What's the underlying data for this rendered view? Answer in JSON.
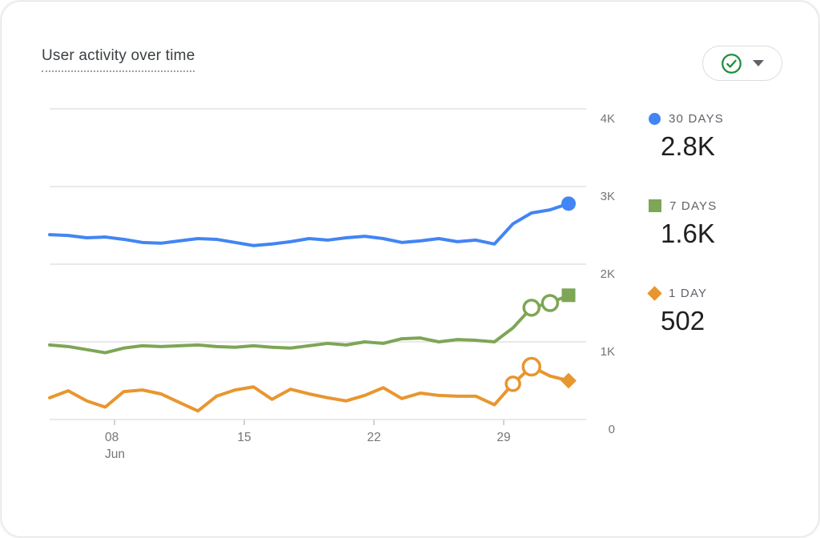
{
  "title": "User activity over time",
  "toolbar": {
    "insight_button": {
      "icon": "check-circle-icon",
      "icon_color": "#1e8e3e",
      "caret_icon": "caret-down-icon",
      "caret_color": "#5f6368"
    }
  },
  "legend": {
    "items": [
      {
        "label": "30 DAYS",
        "value": "2.8K",
        "color": "#4285f4",
        "marker": "circle"
      },
      {
        "label": "7 DAYS",
        "value": "1.6K",
        "color": "#7da655",
        "marker": "square"
      },
      {
        "label": "1 DAY",
        "value": "502",
        "color": "#e8962f",
        "marker": "diamond"
      }
    ]
  },
  "chart_data": {
    "type": "line",
    "title": "User activity over time",
    "grid": "horizontal",
    "legend_position": "right",
    "x_axis": {
      "tick_labels": [
        "08",
        "15",
        "22",
        "29"
      ],
      "month_label": "Jun",
      "tick_indices": [
        3.5,
        10.5,
        17.5,
        24.5
      ]
    },
    "y_axis": {
      "tick_labels": [
        "4K",
        "3K",
        "2K",
        "1K",
        "0"
      ],
      "tick_values": [
        4000,
        3000,
        2000,
        1000,
        0
      ],
      "range": [
        0,
        4000
      ]
    },
    "colors": {
      "gridline": "#e9e9e9",
      "tick": "#c4c4c4",
      "axis_text": "#757575"
    },
    "series": [
      {
        "name": "30 DAYS",
        "current_value": "2.8K",
        "color": "#4285f4",
        "end_marker": "circle",
        "anomaly_indices": [],
        "anomaly_radii": [],
        "values": [
          2380,
          2370,
          2340,
          2350,
          2320,
          2280,
          2270,
          2300,
          2330,
          2320,
          2280,
          2240,
          2260,
          2290,
          2330,
          2310,
          2340,
          2360,
          2330,
          2280,
          2300,
          2330,
          2290,
          2310,
          2260,
          2520,
          2660,
          2700,
          2780
        ]
      },
      {
        "name": "7 DAYS",
        "current_value": "1.6K",
        "color": "#7da655",
        "end_marker": "square",
        "anomaly_indices": [
          26,
          27
        ],
        "anomaly_radii": [
          9.5,
          9.5
        ],
        "values": [
          960,
          940,
          900,
          860,
          920,
          950,
          940,
          950,
          960,
          940,
          930,
          950,
          930,
          920,
          950,
          980,
          960,
          1000,
          980,
          1040,
          1050,
          1000,
          1030,
          1020,
          1000,
          1180,
          1440,
          1500,
          1600
        ]
      },
      {
        "name": "1 DAY",
        "current_value": "502",
        "color": "#e8962f",
        "end_marker": "diamond",
        "anomaly_indices": [
          25,
          26
        ],
        "anomaly_radii": [
          8.5,
          10.5
        ],
        "values": [
          280,
          370,
          240,
          160,
          360,
          380,
          330,
          220,
          110,
          300,
          380,
          420,
          260,
          390,
          330,
          280,
          240,
          310,
          410,
          270,
          340,
          310,
          300,
          300,
          190,
          460,
          680,
          560,
          500
        ]
      }
    ]
  }
}
